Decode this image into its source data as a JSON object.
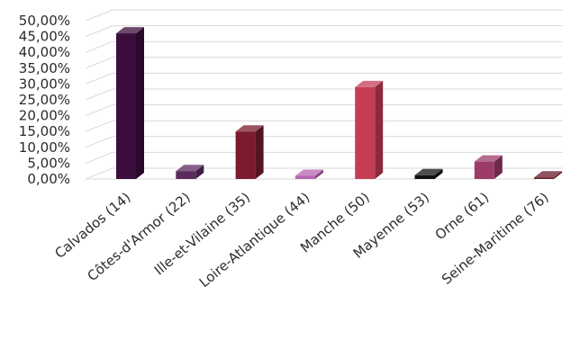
{
  "chart_data": {
    "type": "bar",
    "title": "",
    "xlabel": "",
    "ylabel": "",
    "categories": [
      "Calvados (14)",
      "Côtes-d'Armor (22)",
      "Ille-et-Vilaine (35)",
      "Loire-Atlantique (44)",
      "Manche (50)",
      "Mayenne (53)",
      "Orne (61)",
      "Seine-Maritime (76)"
    ],
    "values": [
      0.46,
      0.025,
      0.15,
      0.01,
      0.29,
      0.012,
      0.055,
      0.005
    ],
    "colors": [
      "#3a0d3d",
      "#5c2a5e",
      "#7a1c2e",
      "#b565b0",
      "#c53d55",
      "#111111",
      "#9c3b68",
      "#6b1a2a"
    ],
    "ylim": [
      0,
      0.5
    ],
    "yticks": [
      "0,00%",
      "5,00%",
      "10,00%",
      "15,00%",
      "20,00%",
      "25,00%",
      "30,00%",
      "35,00%",
      "40,00%",
      "45,00%",
      "50,00%"
    ],
    "grid": true,
    "three_d": true,
    "legend": "none"
  }
}
